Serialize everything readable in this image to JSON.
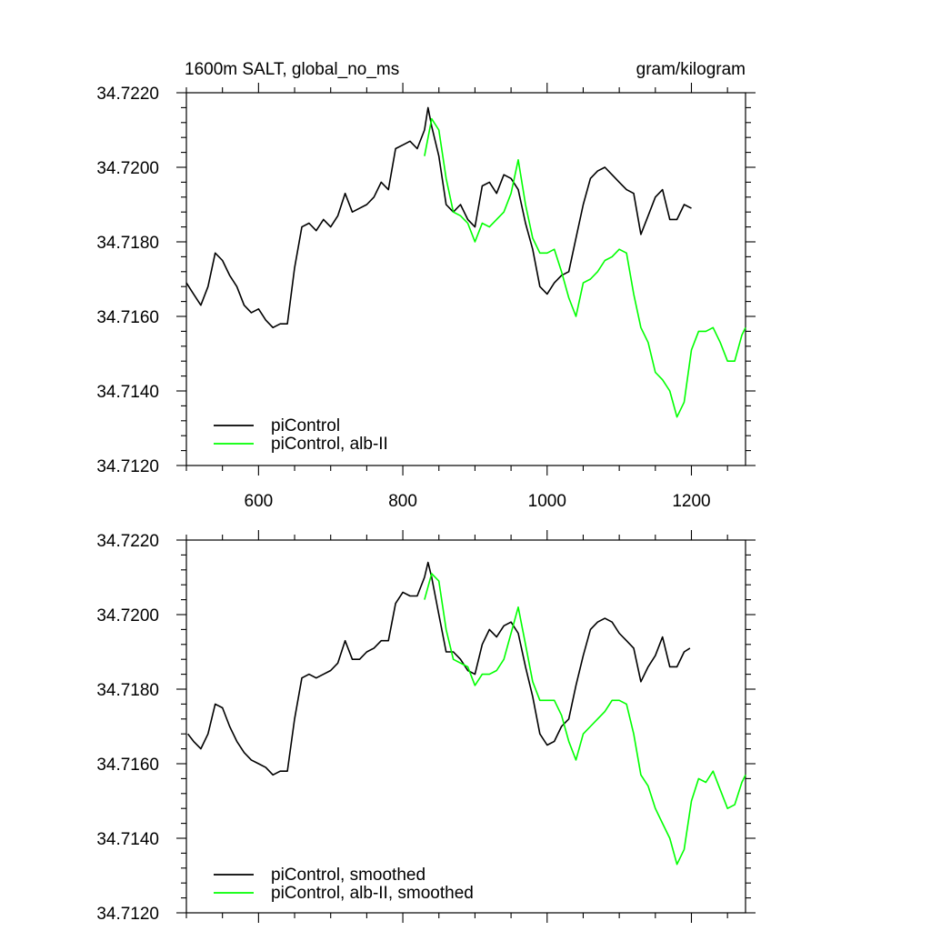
{
  "chart_data": [
    {
      "type": "line",
      "title_left": "1600m SALT, global_no_ms",
      "title_right": "gram/kilogram",
      "xlabel": "",
      "ylabel": "",
      "xlim": [
        500,
        1275
      ],
      "ylim": [
        34.712,
        34.722
      ],
      "x_ticks": [
        600,
        800,
        1000,
        1200
      ],
      "x_tick_labels": [
        "600",
        "800",
        "1000",
        "1200"
      ],
      "y_ticks": [
        34.712,
        34.714,
        34.716,
        34.718,
        34.72,
        34.722
      ],
      "y_tick_labels": [
        "34.7120",
        "34.7140",
        "34.7160",
        "34.7180",
        "34.7200",
        "34.7220"
      ],
      "legend_position": "bottom-left",
      "series": [
        {
          "name": "piControl",
          "color": "#000000",
          "x": [
            500,
            510,
            520,
            530,
            540,
            550,
            560,
            570,
            580,
            590,
            600,
            610,
            620,
            630,
            640,
            650,
            660,
            670,
            680,
            690,
            700,
            710,
            720,
            730,
            740,
            750,
            760,
            770,
            780,
            790,
            800,
            810,
            820,
            830,
            835,
            840,
            850,
            860,
            870,
            880,
            890,
            900,
            910,
            920,
            930,
            940,
            950,
            960,
            970,
            980,
            990,
            1000,
            1010,
            1020,
            1030,
            1040,
            1050,
            1060,
            1070,
            1080,
            1090,
            1100,
            1110,
            1120,
            1130,
            1140,
            1150,
            1160,
            1170,
            1180,
            1190,
            1200
          ],
          "y": [
            34.7169,
            34.7166,
            34.7163,
            34.7168,
            34.7177,
            34.7175,
            34.7171,
            34.7168,
            34.7163,
            34.7161,
            34.7162,
            34.7159,
            34.7157,
            34.7158,
            34.7158,
            34.7173,
            34.7184,
            34.7185,
            34.7183,
            34.7186,
            34.7184,
            34.7187,
            34.7193,
            34.7188,
            34.7189,
            34.719,
            34.7192,
            34.7196,
            34.7194,
            34.7205,
            34.7206,
            34.7207,
            34.7205,
            34.721,
            34.7216,
            34.7211,
            34.7203,
            34.719,
            34.7188,
            34.719,
            34.7186,
            34.7184,
            34.7195,
            34.7196,
            34.7193,
            34.7198,
            34.7197,
            34.7194,
            34.7185,
            34.7178,
            34.7168,
            34.7166,
            34.7169,
            34.7171,
            34.7172,
            34.7181,
            34.719,
            34.7197,
            34.7199,
            34.72,
            34.7198,
            34.7196,
            34.7194,
            34.7193,
            34.7182,
            34.7187,
            34.7192,
            34.7194,
            34.7186,
            34.7186,
            34.719,
            34.7189
          ]
        },
        {
          "name": "piControl, alb-II",
          "color": "#00ff00",
          "x": [
            830,
            840,
            850,
            860,
            870,
            880,
            890,
            900,
            910,
            920,
            930,
            940,
            950,
            960,
            970,
            980,
            990,
            1000,
            1010,
            1020,
            1030,
            1040,
            1050,
            1060,
            1070,
            1080,
            1090,
            1100,
            1110,
            1120,
            1130,
            1140,
            1150,
            1160,
            1170,
            1180,
            1190,
            1200,
            1210,
            1220,
            1230,
            1240,
            1250,
            1260,
            1270,
            1275
          ],
          "y": [
            34.7203,
            34.7213,
            34.721,
            34.7197,
            34.7188,
            34.7187,
            34.7185,
            34.718,
            34.7185,
            34.7184,
            34.7186,
            34.7188,
            34.7193,
            34.7202,
            34.719,
            34.7181,
            34.7177,
            34.7177,
            34.7178,
            34.7172,
            34.7165,
            34.716,
            34.7169,
            34.717,
            34.7172,
            34.7175,
            34.7176,
            34.7178,
            34.7177,
            34.7166,
            34.7157,
            34.7153,
            34.7145,
            34.7143,
            34.714,
            34.7133,
            34.7137,
            34.7151,
            34.7156,
            34.7156,
            34.7157,
            34.7153,
            34.7148,
            34.7148,
            34.7155,
            34.7157
          ]
        }
      ]
    },
    {
      "type": "line",
      "title_left": "",
      "title_right": "",
      "xlabel": "",
      "ylabel": "",
      "xlim": [
        500,
        1275
      ],
      "ylim": [
        34.712,
        34.722
      ],
      "x_ticks": [
        600,
        800,
        1000,
        1200
      ],
      "x_tick_labels": [],
      "y_ticks": [
        34.712,
        34.714,
        34.716,
        34.718,
        34.72,
        34.722
      ],
      "y_tick_labels": [
        "34.7120",
        "34.7140",
        "34.7160",
        "34.7180",
        "34.7200",
        "34.7220"
      ],
      "legend_position": "bottom-left",
      "series": [
        {
          "name": "piControl, smoothed",
          "color": "#000000",
          "x": [
            502,
            510,
            520,
            530,
            540,
            550,
            560,
            570,
            580,
            590,
            600,
            610,
            620,
            630,
            640,
            650,
            660,
            670,
            680,
            690,
            700,
            710,
            720,
            730,
            740,
            750,
            760,
            770,
            780,
            790,
            800,
            810,
            820,
            830,
            835,
            840,
            850,
            860,
            870,
            880,
            890,
            900,
            910,
            920,
            930,
            940,
            950,
            960,
            970,
            980,
            990,
            1000,
            1010,
            1020,
            1030,
            1040,
            1050,
            1060,
            1070,
            1080,
            1090,
            1100,
            1110,
            1120,
            1130,
            1140,
            1150,
            1160,
            1170,
            1180,
            1190,
            1198
          ],
          "y": [
            34.7168,
            34.7166,
            34.7164,
            34.7168,
            34.7176,
            34.7175,
            34.717,
            34.7166,
            34.7163,
            34.7161,
            34.716,
            34.7159,
            34.7157,
            34.7158,
            34.7158,
            34.7172,
            34.7183,
            34.7184,
            34.7183,
            34.7184,
            34.7185,
            34.7187,
            34.7193,
            34.7188,
            34.7188,
            34.719,
            34.7191,
            34.7193,
            34.7193,
            34.7203,
            34.7206,
            34.7205,
            34.7205,
            34.721,
            34.7214,
            34.721,
            34.72,
            34.719,
            34.719,
            34.7188,
            34.7185,
            34.7184,
            34.7192,
            34.7196,
            34.7194,
            34.7197,
            34.7198,
            34.7195,
            34.7186,
            34.7178,
            34.7168,
            34.7165,
            34.7166,
            34.717,
            34.7172,
            34.7181,
            34.7189,
            34.7196,
            34.7198,
            34.7199,
            34.7198,
            34.7195,
            34.7193,
            34.7191,
            34.7182,
            34.7186,
            34.7189,
            34.7194,
            34.7186,
            34.7186,
            34.719,
            34.7191
          ]
        },
        {
          "name": "piControl, alb-II, smoothed",
          "color": "#00ff00",
          "x": [
            830,
            840,
            850,
            860,
            870,
            880,
            890,
            900,
            910,
            920,
            930,
            940,
            950,
            960,
            970,
            980,
            990,
            1000,
            1010,
            1020,
            1030,
            1040,
            1050,
            1060,
            1070,
            1080,
            1090,
            1100,
            1110,
            1120,
            1130,
            1140,
            1150,
            1160,
            1170,
            1180,
            1190,
            1200,
            1210,
            1220,
            1230,
            1240,
            1250,
            1260,
            1270,
            1275
          ],
          "y": [
            34.7204,
            34.7211,
            34.7209,
            34.7196,
            34.7188,
            34.7187,
            34.7186,
            34.7181,
            34.7184,
            34.7184,
            34.7185,
            34.7188,
            34.7195,
            34.7202,
            34.7192,
            34.7182,
            34.7177,
            34.7177,
            34.7177,
            34.7173,
            34.7166,
            34.7161,
            34.7168,
            34.717,
            34.7172,
            34.7174,
            34.7177,
            34.7177,
            34.7176,
            34.7168,
            34.7157,
            34.7154,
            34.7148,
            34.7144,
            34.714,
            34.7133,
            34.7137,
            34.715,
            34.7156,
            34.7155,
            34.7158,
            34.7153,
            34.7148,
            34.7149,
            34.7155,
            34.7157
          ]
        }
      ]
    }
  ]
}
